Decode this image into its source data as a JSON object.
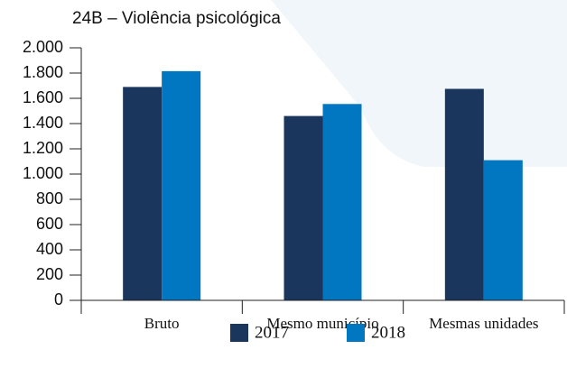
{
  "chart_data": {
    "type": "bar",
    "subtitle": "24B – Violência psicológica",
    "categories": [
      "Bruto",
      "Mesmo município",
      "Mesmas unidades"
    ],
    "series": [
      {
        "name": "2017",
        "color": "#1b365d",
        "values": [
          1690,
          1460,
          1675
        ]
      },
      {
        "name": "2018",
        "color": "#0077c0",
        "values": [
          1815,
          1555,
          1110
        ]
      }
    ],
    "ylim": [
      0,
      2000
    ],
    "yticks": [
      0,
      200,
      400,
      600,
      800,
      {
        "value": 1000,
        "label": "1.000"
      },
      {
        "value": 1200,
        "label": "1.200"
      },
      {
        "value": 1400,
        "label": "1.400"
      },
      {
        "value": 1600,
        "label": "1.600"
      },
      {
        "value": 1800,
        "label": "1.800"
      },
      {
        "value": 2000,
        "label": "2.000"
      }
    ],
    "legend": "bottom"
  }
}
